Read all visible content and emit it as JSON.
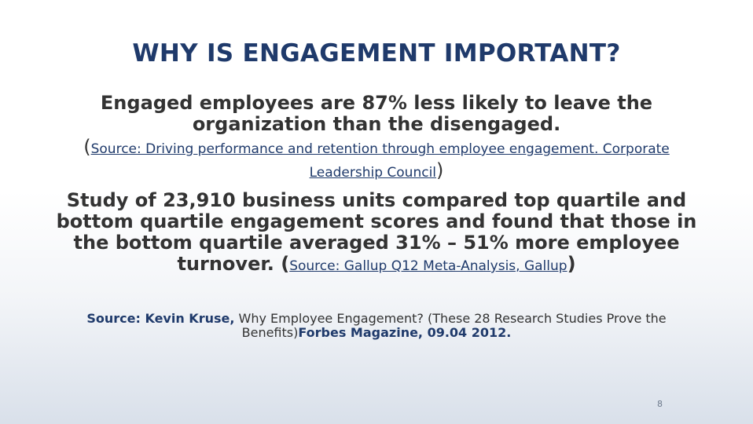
{
  "slide": {
    "title": "WHY IS ENGAGEMENT IMPORTANT?",
    "para1_text": "Engaged employees are 87% less likely to leave the organization than the disengaged.",
    "para1_open_paren": "(",
    "para1_source_link": "Source: Driving performance and retention through employee engagement. Corporate Leadership Council",
    "para1_close_paren": ")",
    "para2_text": "Study of 23,910 business units compared top quartile and bottom quartile engagement scores and found that those in the bottom quartile averaged 31% – 51% more employee turnover. (",
    "para2_source_link": "Source: Gallup Q12 Meta-Analysis, Gallup",
    "para2_close_paren": ")",
    "citation_prefix": "Source: Kevin Kruse,",
    "citation_title": " Why Employee Engagement? (These 28 Research Studies Prove the Benefits)",
    "citation_suffix": "Forbes Magazine, 09.04 2012.",
    "page_number": "8"
  },
  "colors": {
    "title": "#1f3a6b",
    "body_text": "#333333",
    "link": "#1f3a6b"
  }
}
